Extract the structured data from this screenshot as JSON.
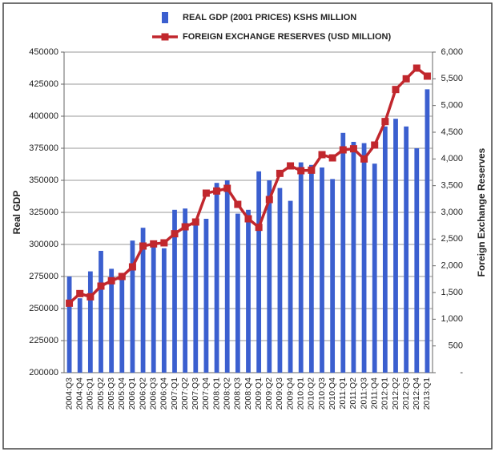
{
  "chart_data": {
    "type": "bar_line",
    "categories": [
      "2004:Q3",
      "2004:Q4",
      "2005:Q1",
      "2005:Q2",
      "2005:Q3",
      "2005:Q4",
      "2006:Q1",
      "2006:Q2",
      "2006:Q3",
      "2006:Q4",
      "2007:Q1",
      "2007:Q2",
      "2007:Q3",
      "2007:Q4",
      "2008:Q1",
      "2008:Q2",
      "2008:Q3",
      "2008:Q4",
      "2009:Q1",
      "2009:Q2",
      "2009:Q3",
      "2009:Q4",
      "2010:Q1",
      "2010:Q2",
      "2010:Q3",
      "2010:Q4",
      "2011:Q1",
      "2011:Q2",
      "2011:Q3",
      "2011:Q4",
      "2012:Q1",
      "2012:Q2",
      "2012:Q3",
      "2012:Q4",
      "2013:Q1"
    ],
    "series": [
      {
        "name": "REAL GDP (2001 PRICES) KSHS MILLION",
        "color": "#3b5fcf",
        "type": "bar",
        "values": [
          275000,
          258000,
          279000,
          295000,
          281000,
          275000,
          303000,
          313000,
          300000,
          297000,
          327000,
          328000,
          319000,
          320000,
          348000,
          350000,
          324000,
          327000,
          357000,
          350000,
          344000,
          334000,
          364000,
          362000,
          360000,
          351000,
          387000,
          380000,
          379000,
          363000,
          392000,
          398000,
          392000,
          375000,
          421000
        ]
      },
      {
        "name": "FOREIGN EXCHANGE RESERVES (USD MILLION)",
        "color": "#c1272d",
        "type": "line",
        "axis": "y2",
        "values": [
          1300,
          1480,
          1420,
          1620,
          1720,
          1800,
          1980,
          2370,
          2410,
          2430,
          2600,
          2730,
          2820,
          3360,
          3400,
          3450,
          3150,
          2880,
          2720,
          3240,
          3730,
          3870,
          3780,
          3790,
          4080,
          4020,
          4170,
          4190,
          4000,
          4260,
          4700,
          5300,
          5500,
          5700,
          5550
        ]
      }
    ],
    "ylabel": "Real GDP",
    "y2label": "Foreign Exchange  Reserves",
    "ylim": [
      200000,
      450000
    ],
    "yticks": [
      200000,
      225000,
      250000,
      275000,
      300000,
      325000,
      350000,
      375000,
      400000,
      425000,
      450000
    ],
    "y2lim": [
      0,
      6000
    ],
    "y2ticks": [
      {
        "value": 0,
        "label": "-"
      },
      500,
      {
        "value": 1000,
        "label": "1,000"
      },
      {
        "value": 1500,
        "label": "1,500"
      },
      {
        "value": 2000,
        "label": "2,000"
      },
      {
        "value": 2500,
        "label": "2,500"
      },
      {
        "value": 3000,
        "label": "3,000"
      },
      {
        "value": 3500,
        "label": "3,500"
      },
      {
        "value": 4000,
        "label": "4,000"
      },
      {
        "value": 4500,
        "label": "4,500"
      },
      {
        "value": 5000,
        "label": "5,000"
      },
      {
        "value": 5500,
        "label": "5,500"
      },
      {
        "value": 6000,
        "label": "6,000"
      }
    ],
    "grid": true
  }
}
